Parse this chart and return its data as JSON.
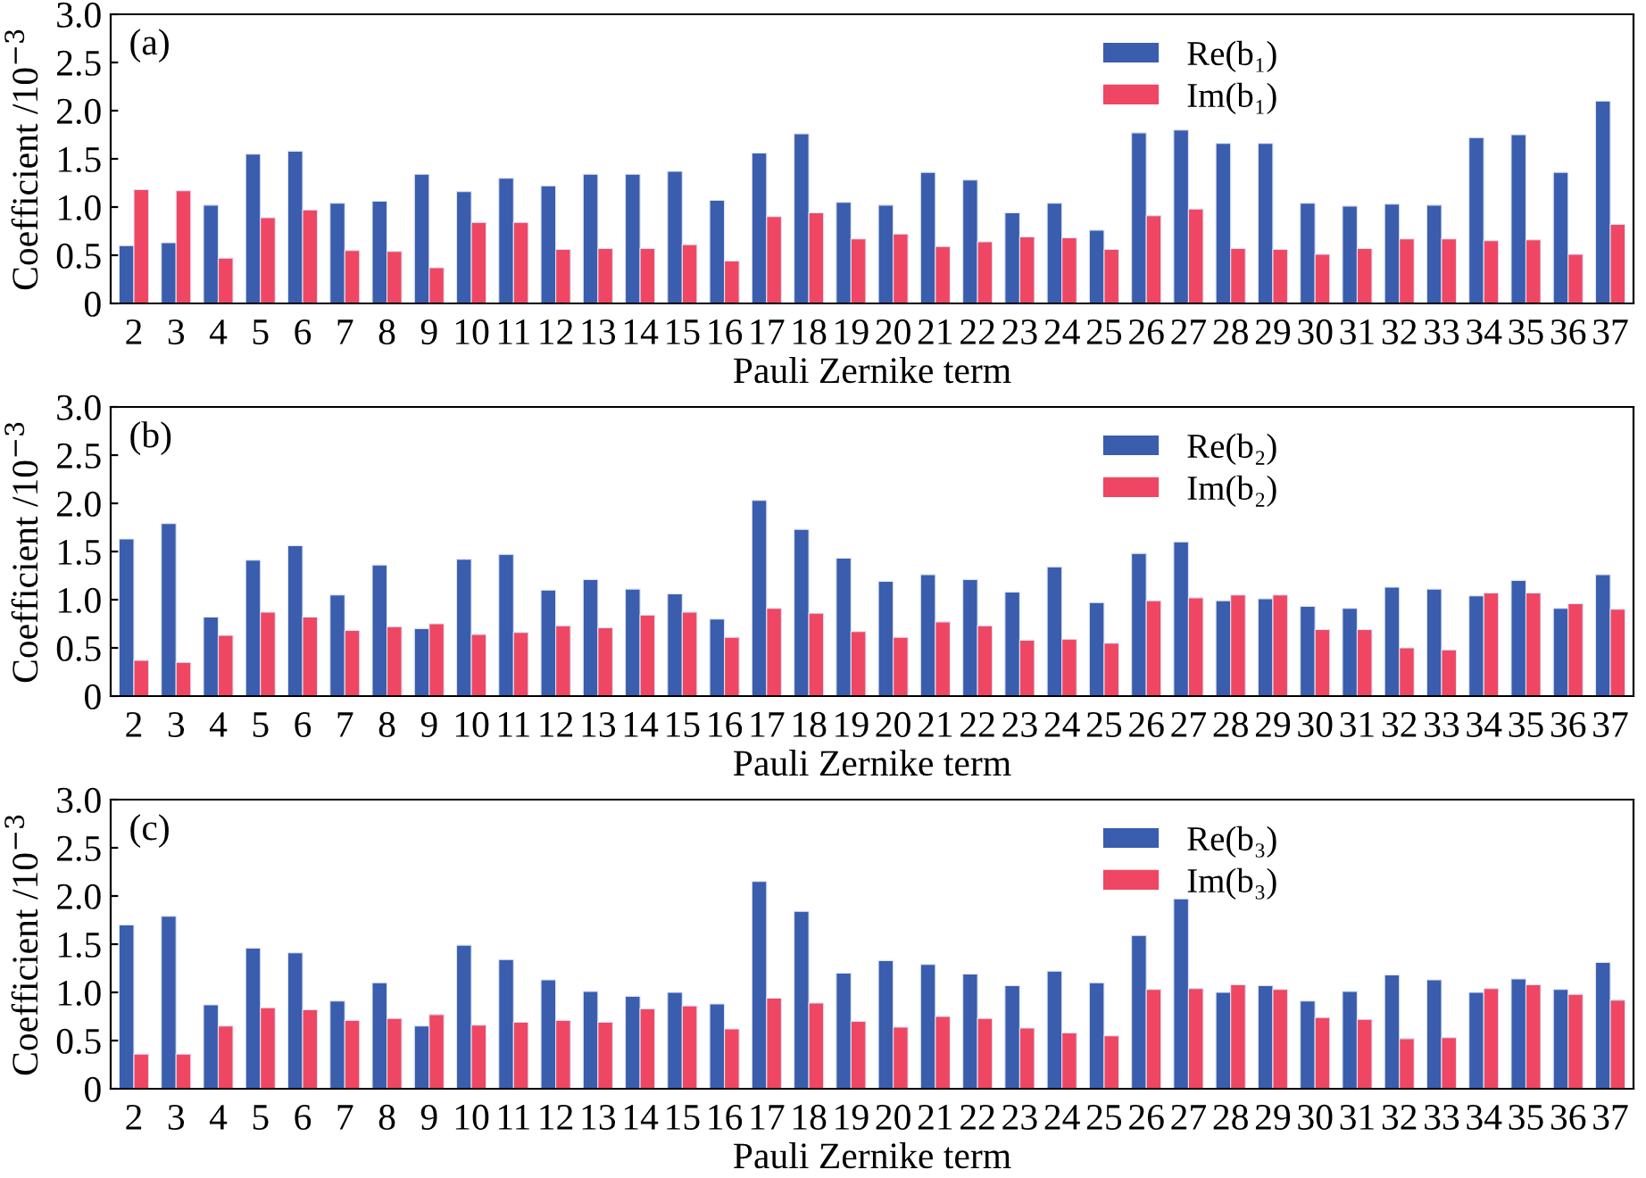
{
  "chart_data": [
    {
      "type": "bar",
      "xlabel": "Pauli Zernike term",
      "ylabel": "Coefficient /10$^{−3}$",
      "annotations": [
        "(a)"
      ],
      "categories": [
        "2",
        "3",
        "4",
        "5",
        "6",
        "7",
        "8",
        "9",
        "10",
        "11",
        "12",
        "13",
        "14",
        "15",
        "16",
        "17",
        "18",
        "19",
        "20",
        "21",
        "22",
        "23",
        "24",
        "25",
        "26",
        "27",
        "28",
        "29",
        "30",
        "31",
        "32",
        "33",
        "34",
        "35",
        "36",
        "37"
      ],
      "series": [
        {
          "name": "Re(b₁)",
          "color": "#3a5dad",
          "values": [
            0.6,
            0.63,
            1.02,
            1.55,
            1.58,
            1.04,
            1.06,
            1.34,
            1.16,
            1.3,
            1.22,
            1.34,
            1.34,
            1.37,
            1.07,
            1.56,
            1.76,
            1.05,
            1.02,
            1.36,
            1.28,
            0.94,
            1.04,
            0.76,
            1.77,
            1.8,
            1.66,
            1.66,
            1.04,
            1.01,
            1.03,
            1.02,
            1.72,
            1.75,
            1.36,
            2.1
          ]
        },
        {
          "name": "Im(b₁)",
          "color": "#ef4763",
          "values": [
            1.18,
            1.17,
            0.47,
            0.89,
            0.97,
            0.55,
            0.54,
            0.37,
            0.84,
            0.84,
            0.56,
            0.57,
            0.57,
            0.61,
            0.44,
            0.9,
            0.94,
            0.67,
            0.72,
            0.59,
            0.64,
            0.69,
            0.68,
            0.56,
            0.91,
            0.98,
            0.57,
            0.56,
            0.51,
            0.57,
            0.67,
            0.67,
            0.65,
            0.66,
            0.51,
            0.82
          ]
        }
      ],
      "ylim": [
        0,
        3
      ],
      "yticks": [
        0,
        0.5,
        {
          "value": 1,
          "label": "1.0"
        },
        1.5,
        {
          "value": 2,
          "label": "2.0"
        },
        2.5,
        {
          "value": 3,
          "label": "3.0"
        }
      ],
      "grid": false,
      "legend": "top right"
    },
    {
      "type": "bar",
      "xlabel": "Pauli Zernike term",
      "ylabel": "Coefficient /10$^{−3}$",
      "annotations": [
        "(b)"
      ],
      "categories": [
        "2",
        "3",
        "4",
        "5",
        "6",
        "7",
        "8",
        "9",
        "10",
        "11",
        "12",
        "13",
        "14",
        "15",
        "16",
        "17",
        "18",
        "19",
        "20",
        "21",
        "22",
        "23",
        "24",
        "25",
        "26",
        "27",
        "28",
        "29",
        "30",
        "31",
        "32",
        "33",
        "34",
        "35",
        "36",
        "37"
      ],
      "series": [
        {
          "name": "Re(b₂)",
          "color": "#3a5dad",
          "values": [
            1.63,
            1.79,
            0.82,
            1.41,
            1.56,
            1.05,
            1.36,
            0.7,
            1.42,
            1.47,
            1.1,
            1.21,
            1.11,
            1.06,
            0.8,
            2.03,
            1.73,
            1.43,
            1.19,
            1.26,
            1.21,
            1.08,
            1.34,
            0.97,
            1.48,
            1.6,
            0.99,
            1.01,
            0.93,
            0.91,
            1.13,
            1.11,
            1.04,
            1.2,
            0.91,
            1.26
          ]
        },
        {
          "name": "Im(b₂)",
          "color": "#ef4763",
          "values": [
            0.37,
            0.35,
            0.63,
            0.87,
            0.82,
            0.68,
            0.72,
            0.75,
            0.64,
            0.66,
            0.73,
            0.71,
            0.84,
            0.87,
            0.61,
            0.91,
            0.86,
            0.67,
            0.61,
            0.77,
            0.73,
            0.58,
            0.59,
            0.55,
            0.99,
            1.02,
            1.05,
            1.05,
            0.69,
            0.69,
            0.5,
            0.48,
            1.07,
            1.07,
            0.96,
            0.9
          ]
        }
      ],
      "ylim": [
        0,
        3
      ],
      "yticks": [
        0,
        0.5,
        {
          "value": 1,
          "label": "1.0"
        },
        1.5,
        {
          "value": 2,
          "label": "2.0"
        },
        2.5,
        {
          "value": 3,
          "label": "3.0"
        }
      ],
      "grid": false,
      "legend": "top right"
    },
    {
      "type": "bar",
      "xlabel": "Pauli Zernike term",
      "ylabel": "Coefficient /10$^{−3}$",
      "annotations": [
        "(c)"
      ],
      "categories": [
        "2",
        "3",
        "4",
        "5",
        "6",
        "7",
        "8",
        "9",
        "10",
        "11",
        "12",
        "13",
        "14",
        "15",
        "16",
        "17",
        "18",
        "19",
        "20",
        "21",
        "22",
        "23",
        "24",
        "25",
        "26",
        "27",
        "28",
        "29",
        "30",
        "31",
        "32",
        "33",
        "34",
        "35",
        "36",
        "37"
      ],
      "series": [
        {
          "name": "Re(b₃)",
          "color": "#3a5dad",
          "values": [
            1.7,
            1.79,
            0.87,
            1.46,
            1.41,
            0.91,
            1.1,
            0.65,
            1.49,
            1.34,
            1.13,
            1.01,
            0.96,
            1.0,
            0.88,
            2.15,
            1.84,
            1.2,
            1.33,
            1.29,
            1.19,
            1.07,
            1.22,
            1.1,
            1.59,
            1.97,
            1.0,
            1.07,
            0.91,
            1.01,
            1.18,
            1.13,
            1.0,
            1.14,
            1.03,
            1.31
          ]
        },
        {
          "name": "Im(b₃)",
          "color": "#ef4763",
          "values": [
            0.36,
            0.36,
            0.65,
            0.84,
            0.82,
            0.71,
            0.73,
            0.77,
            0.66,
            0.69,
            0.71,
            0.69,
            0.83,
            0.86,
            0.62,
            0.94,
            0.89,
            0.7,
            0.64,
            0.75,
            0.73,
            0.63,
            0.58,
            0.55,
            1.03,
            1.04,
            1.08,
            1.03,
            0.74,
            0.72,
            0.52,
            0.53,
            1.04,
            1.08,
            0.98,
            0.92
          ]
        }
      ],
      "ylim": [
        0,
        3
      ],
      "yticks": [
        0,
        0.5,
        {
          "value": 1,
          "label": "1.0"
        },
        1.5,
        {
          "value": 2,
          "label": "2.0"
        },
        2.5,
        {
          "value": 3,
          "label": "3.0"
        }
      ],
      "grid": false,
      "legend": "top right"
    }
  ]
}
